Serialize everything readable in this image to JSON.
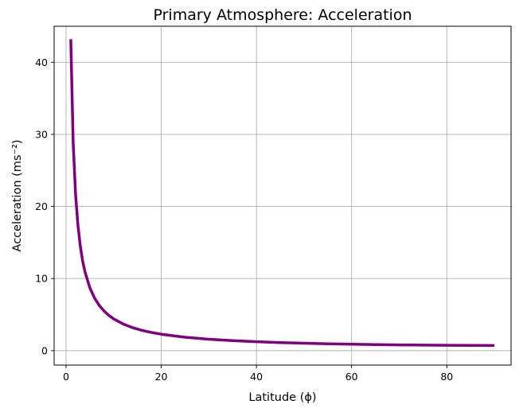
{
  "chart_data": {
    "type": "line",
    "title": "Primary Atmosphere: Acceleration",
    "xlabel": "Latitude (ϕ)",
    "ylabel": "Acceleration (ms⁻²)",
    "xlim": [
      -2.5,
      93.5
    ],
    "ylim": [
      -2.0,
      45.0
    ],
    "x_ticks": [
      0,
      20,
      40,
      60,
      80
    ],
    "y_ticks": [
      0,
      10,
      20,
      30,
      40
    ],
    "grid": true,
    "series": [
      {
        "color": "#800080",
        "x": [
          1,
          1.5,
          2,
          2.5,
          3,
          3.5,
          4,
          5,
          6,
          7,
          8,
          9,
          10,
          12,
          14,
          16,
          18,
          20,
          25,
          30,
          35,
          40,
          45,
          50,
          55,
          60,
          65,
          70,
          75,
          80,
          85,
          90
        ],
        "y": [
          43.2,
          28.9,
          21.7,
          17.4,
          14.5,
          12.4,
          10.9,
          8.73,
          7.29,
          6.26,
          5.49,
          4.89,
          4.41,
          3.7,
          3.19,
          2.81,
          2.52,
          2.28,
          1.86,
          1.58,
          1.39,
          1.24,
          1.12,
          1.03,
          0.95,
          0.89,
          0.84,
          0.8,
          0.77,
          0.74,
          0.73,
          0.72
        ]
      }
    ]
  }
}
